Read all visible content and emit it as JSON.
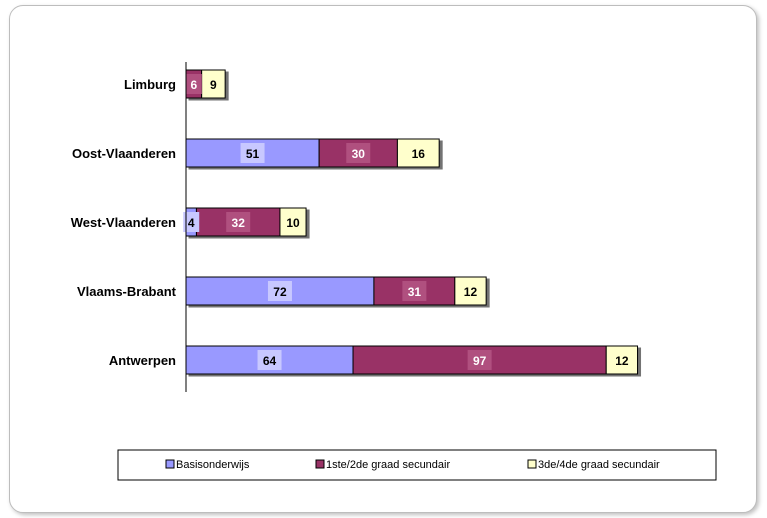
{
  "chart_data": {
    "type": "bar",
    "orientation": "horizontal",
    "stacked": true,
    "categories": [
      "Limburg",
      "Oost-Vlaanderen",
      "West-Vlaanderen",
      "Vlaams-Brabant",
      "Antwerpen"
    ],
    "series": [
      {
        "name": "Basisonderwijs",
        "values": [
          0,
          51,
          4,
          72,
          64
        ],
        "color": "#9999ff",
        "label_bg": "#c8c8ff"
      },
      {
        "name": "1ste/2de graad secundair",
        "values": [
          6,
          30,
          32,
          31,
          97
        ],
        "color": "#993366",
        "label_bg": "#b0507f"
      },
      {
        "name": "3de/4de graad secundair",
        "values": [
          9,
          16,
          10,
          12,
          12
        ],
        "color": "#ffffcc",
        "label_bg": "#ffffcc"
      }
    ],
    "xlim": [
      0,
      185
    ],
    "grid": false,
    "legend": "bottom",
    "title": "",
    "xlabel": "",
    "ylabel": ""
  }
}
